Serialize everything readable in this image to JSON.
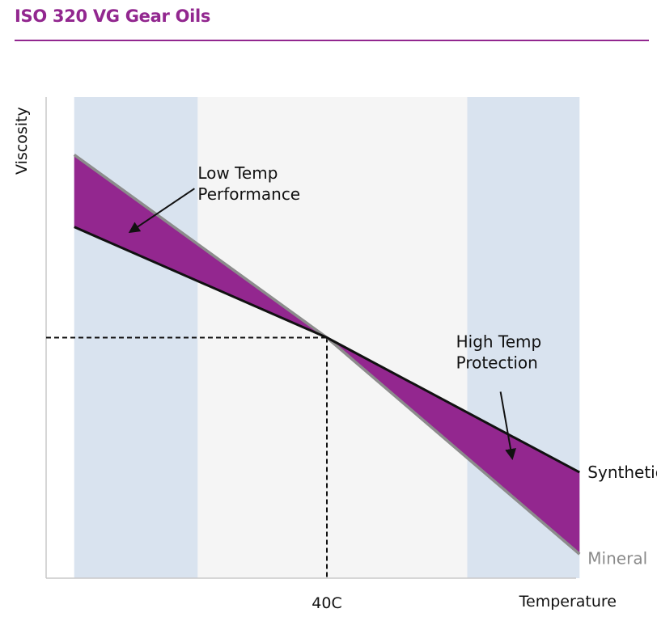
{
  "title": "ISO 320 VG Gear Oils",
  "colors": {
    "title": "#92278f",
    "fill_region": "#93278f",
    "band_shaded": "#d9e3ef",
    "band_center": "#f5f5f5",
    "synthetic_line": "#111111",
    "mineral_line": "#8c8c8c"
  },
  "chart_data": {
    "type": "line",
    "title": "ISO 320 VG Gear Oils",
    "xlabel": "Temperature",
    "ylabel": "Viscosity",
    "x_ticks": [
      "40C"
    ],
    "axis_ticks_numeric": false,
    "x_domain": [
      0,
      100
    ],
    "y_domain": [
      0,
      100
    ],
    "reference_point": {
      "x": 50,
      "y": 50,
      "label": "40C",
      "dashed_guides": true
    },
    "series": [
      {
        "name": "Synthetic",
        "x": [
          5,
          50,
          95
        ],
        "y": [
          73,
          50,
          22
        ]
      },
      {
        "name": "Mineral",
        "x": [
          5,
          50,
          95
        ],
        "y": [
          88,
          50,
          5
        ]
      }
    ],
    "bands": [
      {
        "from": 5,
        "to": 27,
        "shade": "band_shaded"
      },
      {
        "from": 27,
        "to": 75,
        "shade": "band_center"
      },
      {
        "from": 75,
        "to": 95,
        "shade": "band_shaded"
      }
    ],
    "annotations": [
      {
        "lines": [
          "Low Temp",
          "Performance"
        ],
        "text_at": [
          27,
          83
        ],
        "arrow_to": [
          15,
          72
        ]
      },
      {
        "lines": [
          "High Temp",
          "Protection"
        ],
        "text_at": [
          73,
          48
        ],
        "arrow_to": [
          83,
          25
        ]
      }
    ],
    "legend_placement": "series labels at right end of lines"
  }
}
